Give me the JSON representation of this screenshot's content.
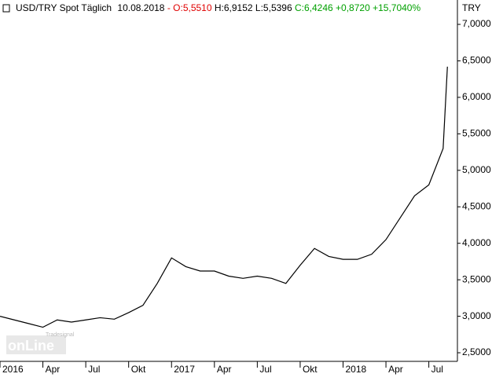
{
  "chart_data": {
    "type": "line",
    "title": "USD/TRY Spot Täglich",
    "date": "10.08.2018",
    "quote": {
      "sep": "-",
      "open": "O:5,5510",
      "high": "H:6,9152",
      "low": "L:5,5396",
      "close": "C:6,4246",
      "change": "+0,8720",
      "change_pct": "+15,7040%"
    },
    "currency": "TRY",
    "watermark": {
      "small": "Tradesignal",
      "big": "onLine"
    },
    "xlim": [
      0,
      32
    ],
    "xticks": [
      {
        "value": 0,
        "label": "2016"
      },
      {
        "value": 3,
        "label": "Apr"
      },
      {
        "value": 6,
        "label": "Jul"
      },
      {
        "value": 9,
        "label": "Okt"
      },
      {
        "value": 12,
        "label": "2017"
      },
      {
        "value": 15,
        "label": "Apr"
      },
      {
        "value": 18,
        "label": "Jul"
      },
      {
        "value": 21,
        "label": "Okt"
      },
      {
        "value": 24,
        "label": "2018"
      },
      {
        "value": 27,
        "label": "Apr"
      },
      {
        "value": 30,
        "label": "Jul"
      }
    ],
    "ylim": [
      2.382,
      7.334
    ],
    "yticks": [
      {
        "value": 2.5,
        "label": "2,5000"
      },
      {
        "value": 3.0,
        "label": "3,0000"
      },
      {
        "value": 3.5,
        "label": "3,5000"
      },
      {
        "value": 4.0,
        "label": "4,0000"
      },
      {
        "value": 4.5,
        "label": "4,5000"
      },
      {
        "value": 5.0,
        "label": "5,0000"
      },
      {
        "value": 5.5,
        "label": "5,5000"
      },
      {
        "value": 6.0,
        "label": "6,0000"
      },
      {
        "value": 6.5,
        "label": "6,5000"
      },
      {
        "value": 7.0,
        "label": "7,0000"
      }
    ],
    "series": [
      {
        "name": "USD/TRY",
        "color": "#000000",
        "x": [
          0,
          1,
          2,
          3,
          4,
          5,
          6,
          7,
          8,
          9,
          10,
          11,
          12,
          13,
          14,
          15,
          16,
          17,
          18,
          19,
          20,
          21,
          22,
          23,
          24,
          25,
          26,
          27,
          28,
          29,
          30,
          31,
          31.3
        ],
        "values": [
          3.0,
          2.95,
          2.9,
          2.85,
          2.95,
          2.92,
          2.95,
          2.98,
          2.96,
          3.05,
          3.15,
          3.45,
          3.8,
          3.68,
          3.62,
          3.62,
          3.55,
          3.52,
          3.55,
          3.52,
          3.45,
          3.7,
          3.93,
          3.82,
          3.78,
          3.78,
          3.85,
          4.05,
          4.35,
          4.65,
          4.8,
          5.3,
          6.42
        ]
      }
    ]
  }
}
